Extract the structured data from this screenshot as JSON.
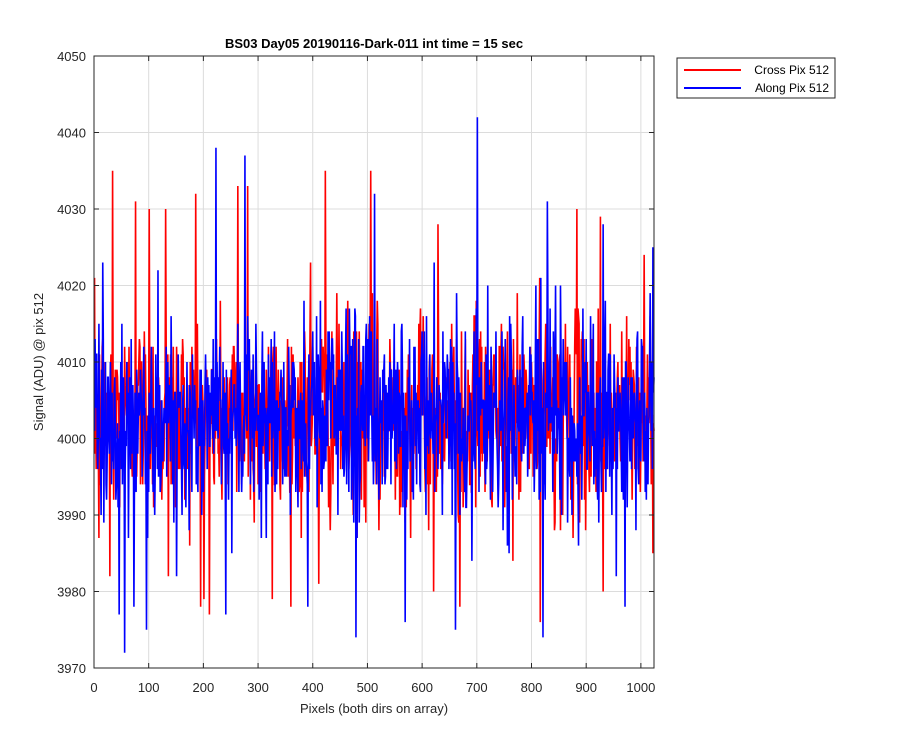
{
  "chart_data": {
    "type": "line",
    "title": "BS03 Day05 20190116-Dark-011 int time = 15 sec",
    "xlabel": "Pixels (both dirs on array)",
    "ylabel": "Signal (ADU) @ pix 512",
    "xlim": [
      0,
      1024
    ],
    "ylim": [
      3970,
      4050
    ],
    "xticks": [
      0,
      100,
      200,
      300,
      400,
      500,
      600,
      700,
      800,
      900,
      1000
    ],
    "yticks": [
      3970,
      3980,
      3990,
      4000,
      4010,
      4020,
      4030,
      4040,
      4050
    ],
    "grid": true,
    "legend_position": "outside-top-right",
    "n_points": 1024,
    "noise_summary": {
      "mean": 4003,
      "min_observed": 3972,
      "max_observed": 4042
    },
    "series": [
      {
        "name": "Cross Pix 512",
        "color": "#ff0000",
        "mean": 4003,
        "spikes": [
          {
            "x": 8,
            "y": 3987
          },
          {
            "x": 33,
            "y": 4035
          },
          {
            "x": 28,
            "y": 3982
          },
          {
            "x": 75,
            "y": 4031
          },
          {
            "x": 100,
            "y": 4030
          },
          {
            "x": 130,
            "y": 4030
          },
          {
            "x": 135,
            "y": 3982
          },
          {
            "x": 185,
            "y": 4032
          },
          {
            "x": 200,
            "y": 3979
          },
          {
            "x": 210,
            "y": 3977
          },
          {
            "x": 262,
            "y": 4033
          },
          {
            "x": 280,
            "y": 4033
          },
          {
            "x": 325,
            "y": 3979
          },
          {
            "x": 395,
            "y": 4023
          },
          {
            "x": 410,
            "y": 3981
          },
          {
            "x": 422,
            "y": 4035
          },
          {
            "x": 505,
            "y": 4035
          },
          {
            "x": 520,
            "y": 3988
          },
          {
            "x": 620,
            "y": 3980
          },
          {
            "x": 628,
            "y": 4028
          },
          {
            "x": 668,
            "y": 3978
          },
          {
            "x": 815,
            "y": 3976
          },
          {
            "x": 882,
            "y": 4030
          },
          {
            "x": 925,
            "y": 4029
          },
          {
            "x": 930,
            "y": 3980
          },
          {
            "x": 1005,
            "y": 4024
          }
        ]
      },
      {
        "name": "Along Pix 512",
        "color": "#0000ff",
        "mean": 4003,
        "spikes": [
          {
            "x": 15,
            "y": 4023
          },
          {
            "x": 45,
            "y": 3977
          },
          {
            "x": 55,
            "y": 3972
          },
          {
            "x": 72,
            "y": 3978
          },
          {
            "x": 95,
            "y": 3975
          },
          {
            "x": 150,
            "y": 3982
          },
          {
            "x": 222,
            "y": 4038
          },
          {
            "x": 240,
            "y": 3977
          },
          {
            "x": 275,
            "y": 4037
          },
          {
            "x": 390,
            "y": 3978
          },
          {
            "x": 478,
            "y": 3974
          },
          {
            "x": 512,
            "y": 4032
          },
          {
            "x": 568,
            "y": 3976
          },
          {
            "x": 660,
            "y": 3975
          },
          {
            "x": 700,
            "y": 4042
          },
          {
            "x": 758,
            "y": 3985
          },
          {
            "x": 820,
            "y": 3974
          },
          {
            "x": 828,
            "y": 4031
          },
          {
            "x": 930,
            "y": 4028
          },
          {
            "x": 970,
            "y": 3978
          }
        ]
      }
    ]
  }
}
